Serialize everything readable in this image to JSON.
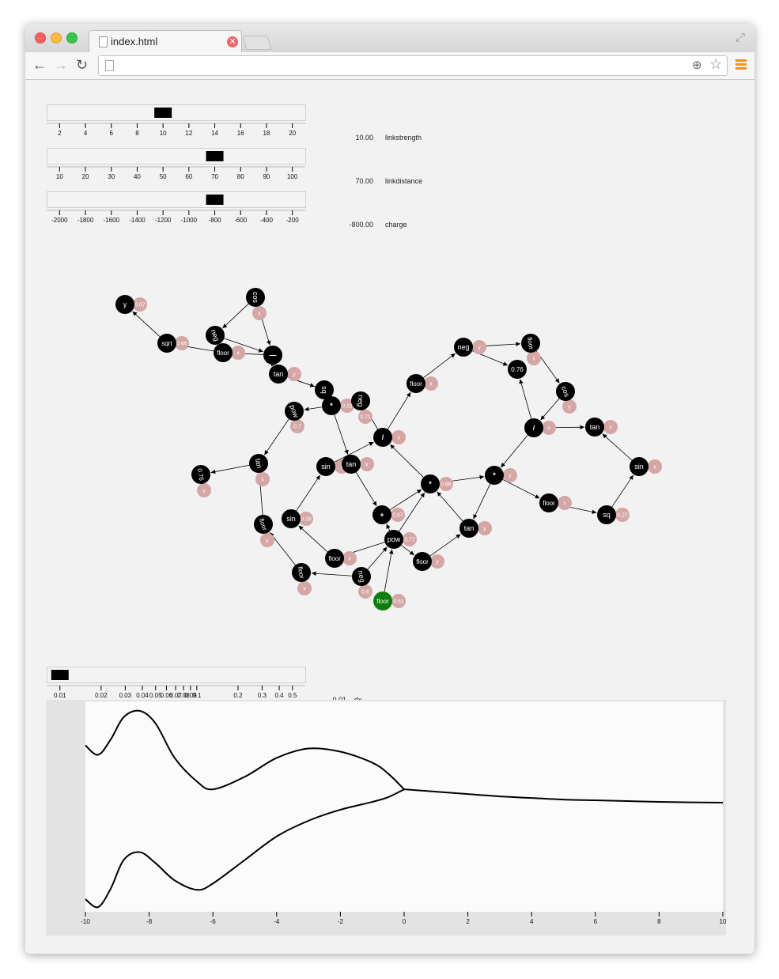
{
  "browser": {
    "tab_title": "index.html",
    "tab_close_glyph": "✕",
    "url": "",
    "icons": [
      "back-icon",
      "forward-icon",
      "reload-icon",
      "zoom-icon",
      "star-icon",
      "menu-icon",
      "fullscreen-icon",
      "page-icon"
    ],
    "menu_color": "#e8961d"
  },
  "sliders": [
    {
      "name": "linkstrength",
      "value_text": "10.00",
      "value": 10,
      "min": 1,
      "max": 21,
      "ticks": [
        2,
        4,
        6,
        8,
        10,
        12,
        14,
        16,
        18,
        20
      ]
    },
    {
      "name": "linkdistance",
      "value_text": "70.00",
      "value": 70,
      "min": 5,
      "max": 105,
      "ticks": [
        10,
        20,
        30,
        40,
        50,
        60,
        70,
        80,
        90,
        100
      ]
    },
    {
      "name": "charge",
      "value_text": "-800.00",
      "value": -800,
      "min": -2100,
      "max": -100,
      "ticks": [
        -2000,
        -1800,
        -1600,
        -1400,
        -1200,
        -1000,
        -800,
        -600,
        -400,
        -200
      ]
    }
  ],
  "dx_slider": {
    "name": "dx",
    "value_text": "0.01",
    "value": 0.01,
    "scale": "log",
    "min": 0.008,
    "max": 0.62,
    "ticks": [
      0.01,
      0.02,
      0.03,
      0.04,
      0.05,
      0.06,
      0.07,
      0.08,
      0.09,
      0.1,
      0.2,
      0.3,
      0.4,
      0.5
    ],
    "tick_labels": [
      "0.01",
      "0.02",
      "0.03",
      "0.04",
      "0.05",
      "0.06",
      "0.07",
      "0.08",
      "0.09",
      "0.1",
      "0.2",
      "0.3",
      "0.4",
      "0.5"
    ]
  },
  "graph": {
    "node_color": "#000000",
    "root_color": "#0a7d0a",
    "leaf_color": "#d4a6a6",
    "nodes": [
      {
        "id": "n1",
        "label": "y",
        "rot": 0
      },
      {
        "id": "n2",
        "label": "cos",
        "rot": 90
      },
      {
        "id": "n3",
        "label": "neg",
        "rot": 70
      },
      {
        "id": "n4",
        "label": "sqrt",
        "rot": 0
      },
      {
        "id": "n5",
        "label": "floor",
        "rot": 0
      },
      {
        "id": "n6",
        "label": "—",
        "rot": 0
      },
      {
        "id": "n7",
        "label": "tan",
        "rot": 0
      },
      {
        "id": "n8",
        "label": "sq",
        "rot": 90
      },
      {
        "id": "n9",
        "label": "*",
        "rot": 0
      },
      {
        "id": "n10",
        "label": "neg",
        "rot": 90
      },
      {
        "id": "n11",
        "label": "pow",
        "rot": 70
      },
      {
        "id": "n12",
        "label": "floor",
        "rot": 0
      },
      {
        "id": "n13",
        "label": "neg",
        "rot": 0
      },
      {
        "id": "n14",
        "label": "floor",
        "rot": 80
      },
      {
        "id": "n15",
        "label": "0.76",
        "rot": 0
      },
      {
        "id": "n16",
        "label": "cos",
        "rot": 70
      },
      {
        "id": "n17",
        "label": "/",
        "rot": 0
      },
      {
        "id": "n18",
        "label": "tan",
        "rot": 0
      },
      {
        "id": "n19",
        "label": "tan",
        "rot": 80
      },
      {
        "id": "n20",
        "label": "0.76",
        "rot": 80
      },
      {
        "id": "n21",
        "label": "sin",
        "rot": 0
      },
      {
        "id": "n22",
        "label": "tan",
        "rot": 0
      },
      {
        "id": "n23",
        "label": "*",
        "rot": 0
      },
      {
        "id": "n24",
        "label": "*",
        "rot": 0
      },
      {
        "id": "n25",
        "label": "sin",
        "rot": 0
      },
      {
        "id": "n26",
        "label": "floor",
        "rot": 0
      },
      {
        "id": "n27",
        "label": "sq",
        "rot": 0
      },
      {
        "id": "n28",
        "label": "floor",
        "rot": 70
      },
      {
        "id": "n29",
        "label": "sin",
        "rot": 0
      },
      {
        "id": "n30",
        "label": "+",
        "rot": 0
      },
      {
        "id": "n31",
        "label": "pow",
        "rot": 0
      },
      {
        "id": "n32",
        "label": "tan",
        "rot": 0
      },
      {
        "id": "n33",
        "label": "floor",
        "rot": 0
      },
      {
        "id": "n34",
        "label": "floor",
        "rot": 80
      },
      {
        "id": "n35",
        "label": "floor",
        "rot": 0
      },
      {
        "id": "n36",
        "label": "neg",
        "rot": 80
      },
      {
        "id": "n37",
        "label": "floor",
        "rot": 0
      },
      {
        "id": "n38",
        "label": "/",
        "rot": 0
      }
    ],
    "leaves": [
      {
        "id": "l1",
        "label": "0.07",
        "parent": "n1"
      },
      {
        "id": "l2",
        "label": "x",
        "parent": "n2"
      },
      {
        "id": "l3",
        "label": "0.66",
        "parent": "n4"
      },
      {
        "id": "l4",
        "label": "x",
        "parent": "n5"
      },
      {
        "id": "l5",
        "label": "y",
        "parent": "n7"
      },
      {
        "id": "l6",
        "label": "0.19",
        "parent": "n9"
      },
      {
        "id": "l7",
        "label": "0.71",
        "parent": "n10"
      },
      {
        "id": "l8",
        "label": "0.7",
        "parent": "n11"
      },
      {
        "id": "l9",
        "label": "x",
        "parent": "n12"
      },
      {
        "id": "l10",
        "label": "y",
        "parent": "n13"
      },
      {
        "id": "l11",
        "label": "x",
        "parent": "n14"
      },
      {
        "id": "l12",
        "label": "y",
        "parent": "n16"
      },
      {
        "id": "l13",
        "label": "x",
        "parent": "n38"
      },
      {
        "id": "l14",
        "label": "x",
        "parent": "n18"
      },
      {
        "id": "l15",
        "label": "x",
        "parent": "n19"
      },
      {
        "id": "l16",
        "label": "y",
        "parent": "n20"
      },
      {
        "id": "l17",
        "label": "x",
        "parent": "n17"
      },
      {
        "id": "l18",
        "label": "x",
        "parent": "n21"
      },
      {
        "id": "l19",
        "label": "x",
        "parent": "n22"
      },
      {
        "id": "l20",
        "label": "0.86",
        "parent": "n23"
      },
      {
        "id": "l21",
        "label": "y",
        "parent": "n24"
      },
      {
        "id": "l22",
        "label": "x",
        "parent": "n25"
      },
      {
        "id": "l23",
        "label": "x",
        "parent": "n26"
      },
      {
        "id": "l24",
        "label": "0.27",
        "parent": "n27"
      },
      {
        "id": "l25",
        "label": "y",
        "parent": "n28"
      },
      {
        "id": "l26",
        "label": "0.28",
        "parent": "n29"
      },
      {
        "id": "l27",
        "label": "0.07",
        "parent": "n30"
      },
      {
        "id": "l28",
        "label": "0.77",
        "parent": "n31"
      },
      {
        "id": "l29",
        "label": "y",
        "parent": "n32"
      },
      {
        "id": "l30",
        "label": "y",
        "parent": "n33"
      },
      {
        "id": "l31",
        "label": "x",
        "parent": "n34"
      },
      {
        "id": "l32",
        "label": "x",
        "parent": "n35"
      },
      {
        "id": "l33",
        "label": "0.6",
        "parent": "n36"
      },
      {
        "id": "l34",
        "label": "0.51",
        "parent": "n37"
      }
    ],
    "edges": [
      [
        "n4",
        "n1"
      ],
      [
        "n2",
        "n3"
      ],
      [
        "n2",
        "n6"
      ],
      [
        "n3",
        "n6"
      ],
      [
        "n6",
        "n5"
      ],
      [
        "n5",
        "n4"
      ],
      [
        "n6",
        "n7"
      ],
      [
        "n7",
        "n8"
      ],
      [
        "n8",
        "n7"
      ],
      [
        "n9",
        "n8"
      ],
      [
        "n9",
        "n11"
      ],
      [
        "n11",
        "n19"
      ],
      [
        "n10",
        "n9"
      ],
      [
        "n38",
        "n10"
      ],
      [
        "n38",
        "n12"
      ],
      [
        "n12",
        "n13"
      ],
      [
        "n13",
        "n14"
      ],
      [
        "n13",
        "n15"
      ],
      [
        "n14",
        "n16"
      ],
      [
        "n16",
        "n17"
      ],
      [
        "n17",
        "n15"
      ],
      [
        "n17",
        "n18"
      ],
      [
        "n17",
        "n24"
      ],
      [
        "n25",
        "n18"
      ],
      [
        "n9",
        "n22"
      ],
      [
        "n21",
        "n38"
      ],
      [
        "n22",
        "n30"
      ],
      [
        "n19",
        "n20"
      ],
      [
        "n23",
        "n24"
      ],
      [
        "n23",
        "n38"
      ],
      [
        "n24",
        "n26"
      ],
      [
        "n24",
        "n32"
      ],
      [
        "n26",
        "n27"
      ],
      [
        "n27",
        "n25"
      ],
      [
        "n29",
        "n21"
      ],
      [
        "n35",
        "n29"
      ],
      [
        "n30",
        "n23"
      ],
      [
        "n31",
        "n30"
      ],
      [
        "n31",
        "n23"
      ],
      [
        "n31",
        "n35"
      ],
      [
        "n31",
        "n33"
      ],
      [
        "n33",
        "n32"
      ],
      [
        "n32",
        "n23"
      ],
      [
        "n36",
        "n34"
      ],
      [
        "n36",
        "n31"
      ],
      [
        "n34",
        "n28"
      ],
      [
        "n28",
        "n19"
      ],
      [
        "n37",
        "n31"
      ]
    ]
  },
  "chart_data": {
    "type": "line",
    "xlim": [
      -10,
      10
    ],
    "x_ticks": [
      -10,
      -8,
      -6,
      -4,
      -2,
      0,
      2,
      4,
      6,
      8,
      10
    ],
    "x_tick_labels": [
      "-10",
      "-8",
      "-6",
      "-4",
      "-2",
      "0",
      "2",
      "4",
      "6",
      "8",
      "10"
    ],
    "grid": false,
    "legend": "none",
    "series": [
      {
        "x": [
          -10,
          -9.6,
          -9.2,
          -8.8,
          -8.3,
          -7.8,
          -7.2,
          -6.5,
          -6,
          -5,
          -4,
          -3,
          -2,
          -1,
          -0.5,
          0
        ],
        "y": [
          0.78,
          0.72,
          0.82,
          0.96,
          1.0,
          0.92,
          0.7,
          0.55,
          0.5,
          0.58,
          0.7,
          0.76,
          0.74,
          0.67,
          0.6,
          0.5
        ]
      },
      {
        "x": [
          -10,
          -9.6,
          -9.2,
          -8.8,
          -8.3,
          -7.8,
          -7.2,
          -6.5,
          -6,
          -5,
          -4,
          -3,
          -2,
          -1,
          -0.5,
          0
        ],
        "y": [
          -0.2,
          -0.25,
          -0.13,
          0.05,
          0.1,
          0.03,
          -0.08,
          -0.14,
          -0.1,
          0.05,
          0.2,
          0.3,
          0.37,
          0.42,
          0.45,
          0.5
        ]
      },
      {
        "x": [
          0,
          1,
          2,
          3,
          4,
          5,
          6,
          7,
          8,
          9,
          10
        ],
        "y": [
          0.5,
          0.485,
          0.47,
          0.455,
          0.445,
          0.435,
          0.43,
          0.425,
          0.42,
          0.417,
          0.415
        ]
      }
    ],
    "ylim": [
      -0.28,
      1.06
    ],
    "line_color": "#000000"
  }
}
